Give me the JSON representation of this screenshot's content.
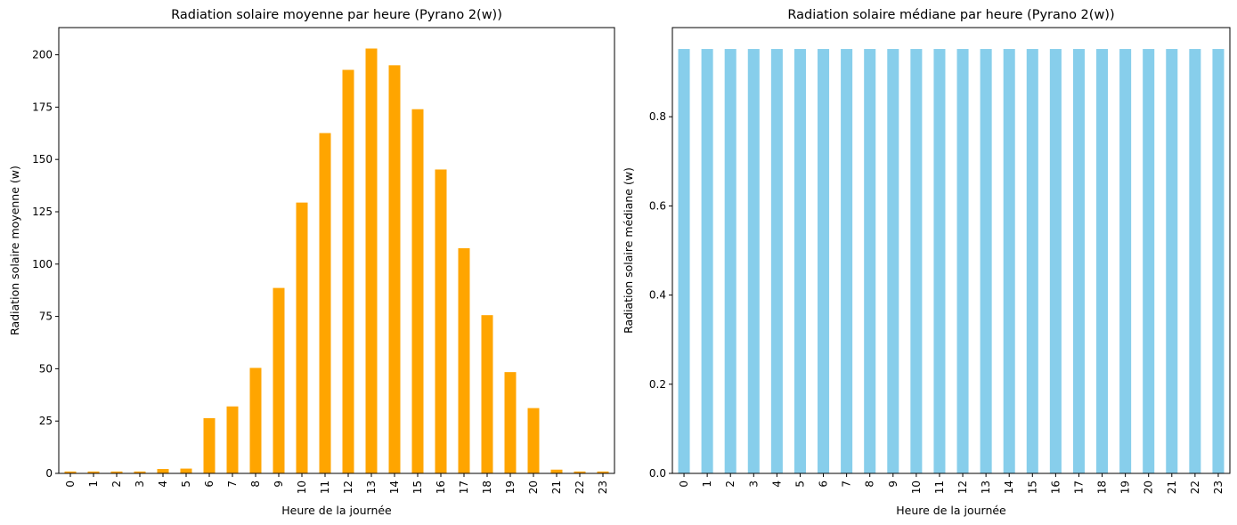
{
  "chart_data": [
    {
      "type": "bar",
      "title": "Radiation solaire moyenne par heure (Pyrano 2(w))",
      "xlabel": "Heure de la journée",
      "ylabel": "Radiation solaire moyenne (w)",
      "categories": [
        "0",
        "1",
        "2",
        "3",
        "4",
        "5",
        "6",
        "7",
        "8",
        "9",
        "10",
        "11",
        "12",
        "13",
        "14",
        "15",
        "16",
        "17",
        "18",
        "19",
        "20",
        "21",
        "22",
        "23"
      ],
      "values": [
        0.9,
        0.9,
        0.9,
        0.9,
        2.1,
        2.3,
        26.4,
        32.0,
        50.4,
        88.6,
        129.4,
        162.6,
        192.8,
        203.0,
        195.0,
        174.0,
        145.2,
        107.6,
        75.6,
        48.4,
        31.2,
        1.8,
        0.9,
        0.9
      ],
      "ylim": [
        0,
        213
      ],
      "yticks": [
        0,
        25,
        50,
        75,
        100,
        125,
        150,
        175,
        200
      ],
      "color": "#ffa500",
      "grid": false
    },
    {
      "type": "bar",
      "title": "Radiation solaire médiane par heure (Pyrano 2(w))",
      "xlabel": "Heure de la journée",
      "ylabel": "Radiation solaire médiane (w)",
      "categories": [
        "0",
        "1",
        "2",
        "3",
        "4",
        "5",
        "6",
        "7",
        "8",
        "9",
        "10",
        "11",
        "12",
        "13",
        "14",
        "15",
        "16",
        "17",
        "18",
        "19",
        "20",
        "21",
        "22",
        "23"
      ],
      "values": [
        0.952,
        0.952,
        0.952,
        0.952,
        0.952,
        0.952,
        0.952,
        0.952,
        0.952,
        0.952,
        0.952,
        0.952,
        0.952,
        0.952,
        0.952,
        0.952,
        0.952,
        0.952,
        0.952,
        0.952,
        0.952,
        0.952,
        0.952,
        0.952
      ],
      "ylim": [
        0,
        1.0
      ],
      "yticks": [
        0.0,
        0.2,
        0.4,
        0.6,
        0.8
      ],
      "color": "#87ceeb",
      "grid": false
    }
  ]
}
